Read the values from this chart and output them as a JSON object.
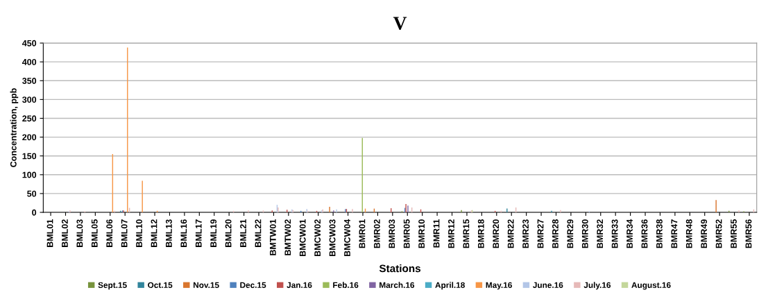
{
  "chart_data": {
    "type": "bar",
    "title": "V",
    "xlabel": "Stations",
    "ylabel": "Concentration, ppb",
    "categories": [
      "BML01",
      "BML02",
      "BML03",
      "BML05",
      "BML06",
      "BML07",
      "BML10",
      "BML12",
      "BML13",
      "BML16",
      "BML17",
      "BML19",
      "BML20",
      "BML21",
      "BML22",
      "BMTW01",
      "BMTW02",
      "BMCW01",
      "BMCW02",
      "BMCW03",
      "BMCW04",
      "BMR01",
      "BMR02",
      "BMR03",
      "BMR05",
      "BMR10",
      "BMR11",
      "BMR12",
      "BMR15",
      "BMR18",
      "BMR20",
      "BMR22",
      "BMR23",
      "BMR27",
      "BMR28",
      "BMR29",
      "BMR30",
      "BMR32",
      "BMR33",
      "BMR34",
      "BMR36",
      "BMR38",
      "BMR47",
      "BMR48",
      "BMR49",
      "BMR52",
      "BMR55",
      "BMR56"
    ],
    "series": [
      {
        "name": "Sept.15",
        "color": "#77933c",
        "values": [
          null,
          null,
          null,
          null,
          null,
          null,
          null,
          null,
          null,
          null,
          null,
          null,
          null,
          null,
          null,
          null,
          null,
          null,
          null,
          null,
          null,
          null,
          null,
          null,
          3,
          null,
          null,
          null,
          6,
          null,
          null,
          null,
          null,
          null,
          null,
          null,
          null,
          null,
          null,
          null,
          null,
          null,
          null,
          null,
          null,
          null,
          4,
          3
        ]
      },
      {
        "name": "Oct.15",
        "color": "#31859c",
        "values": [
          null,
          null,
          null,
          null,
          null,
          4,
          null,
          null,
          null,
          null,
          null,
          null,
          null,
          null,
          null,
          null,
          null,
          null,
          null,
          null,
          null,
          null,
          null,
          null,
          null,
          null,
          null,
          null,
          null,
          null,
          null,
          10,
          null,
          null,
          4,
          null,
          null,
          null,
          null,
          null,
          null,
          null,
          null,
          null,
          null,
          null,
          null,
          null
        ]
      },
      {
        "name": "Nov.15",
        "color": "#d9762e",
        "values": [
          null,
          null,
          null,
          null,
          null,
          null,
          null,
          null,
          null,
          null,
          null,
          null,
          null,
          null,
          null,
          null,
          null,
          null,
          null,
          15,
          null,
          null,
          10,
          null,
          null,
          null,
          null,
          null,
          null,
          null,
          null,
          null,
          null,
          null,
          null,
          null,
          null,
          null,
          null,
          null,
          null,
          null,
          null,
          null,
          null,
          33,
          null,
          null
        ]
      },
      {
        "name": "Dec.15",
        "color": "#4f81bd",
        "values": [
          null,
          null,
          null,
          null,
          null,
          5,
          null,
          null,
          null,
          null,
          null,
          null,
          null,
          null,
          null,
          null,
          null,
          4,
          null,
          null,
          9,
          null,
          null,
          null,
          12,
          null,
          null,
          null,
          null,
          null,
          null,
          null,
          null,
          null,
          null,
          null,
          null,
          null,
          null,
          null,
          null,
          null,
          null,
          null,
          null,
          null,
          null,
          null
        ]
      },
      {
        "name": "Jan.16",
        "color": "#c0504d",
        "values": [
          null,
          null,
          null,
          null,
          null,
          5,
          null,
          null,
          null,
          null,
          null,
          null,
          null,
          null,
          null,
          5,
          7,
          null,
          4,
          null,
          9,
          null,
          null,
          11,
          22,
          8,
          null,
          null,
          null,
          null,
          4,
          null,
          null,
          null,
          null,
          null,
          null,
          null,
          null,
          null,
          null,
          null,
          null,
          null,
          null,
          null,
          null,
          null
        ]
      },
      {
        "name": "Feb.16",
        "color": "#9bbb59",
        "values": [
          null,
          null,
          null,
          null,
          null,
          null,
          null,
          null,
          null,
          null,
          null,
          null,
          null,
          null,
          null,
          null,
          null,
          null,
          null,
          null,
          null,
          198,
          null,
          null,
          null,
          null,
          null,
          null,
          null,
          null,
          null,
          null,
          null,
          null,
          null,
          null,
          null,
          null,
          null,
          null,
          null,
          null,
          null,
          null,
          null,
          null,
          null,
          null
        ]
      },
      {
        "name": "March.16",
        "color": "#8064a2",
        "values": [
          null,
          null,
          null,
          null,
          null,
          null,
          null,
          null,
          null,
          null,
          null,
          null,
          null,
          null,
          null,
          null,
          null,
          null,
          null,
          5,
          null,
          null,
          null,
          null,
          18,
          null,
          null,
          null,
          null,
          null,
          null,
          null,
          null,
          null,
          null,
          null,
          null,
          null,
          null,
          null,
          null,
          null,
          null,
          null,
          null,
          null,
          null,
          null
        ]
      },
      {
        "name": "April.18",
        "color": "#4bacc6",
        "values": [
          null,
          null,
          null,
          null,
          null,
          null,
          null,
          null,
          null,
          null,
          null,
          null,
          null,
          null,
          null,
          null,
          null,
          null,
          null,
          null,
          null,
          null,
          null,
          null,
          null,
          null,
          null,
          null,
          null,
          null,
          null,
          null,
          null,
          null,
          null,
          null,
          null,
          null,
          null,
          null,
          null,
          null,
          null,
          null,
          null,
          null,
          null,
          null
        ]
      },
      {
        "name": "May.16",
        "color": "#f79646",
        "values": [
          null,
          null,
          null,
          null,
          155,
          438,
          84,
          4,
          null,
          null,
          null,
          null,
          null,
          null,
          null,
          null,
          null,
          null,
          null,
          null,
          null,
          10,
          null,
          null,
          null,
          null,
          null,
          null,
          null,
          null,
          null,
          null,
          null,
          null,
          null,
          null,
          null,
          null,
          null,
          null,
          null,
          null,
          null,
          null,
          null,
          null,
          null,
          null
        ]
      },
      {
        "name": "June.16",
        "color": "#b3c6e7",
        "values": [
          null,
          3,
          null,
          null,
          null,
          null,
          null,
          null,
          null,
          null,
          null,
          null,
          null,
          null,
          null,
          20,
          8,
          9,
          5,
          8,
          null,
          null,
          null,
          null,
          null,
          null,
          null,
          null,
          null,
          null,
          null,
          null,
          null,
          null,
          null,
          null,
          3,
          null,
          null,
          null,
          null,
          null,
          null,
          null,
          null,
          null,
          null,
          null
        ]
      },
      {
        "name": "July.16",
        "color": "#e6b9b8",
        "values": [
          null,
          5,
          3,
          null,
          4,
          12,
          null,
          null,
          null,
          null,
          null,
          null,
          4,
          5,
          5,
          13,
          6,
          4,
          8,
          null,
          9,
          null,
          null,
          null,
          13,
          null,
          null,
          null,
          5,
          null,
          4,
          13,
          null,
          null,
          6,
          null,
          null,
          null,
          null,
          null,
          null,
          null,
          null,
          null,
          null,
          null,
          5,
          8
        ]
      },
      {
        "name": "August.16",
        "color": "#c4d79b",
        "values": [
          null,
          null,
          null,
          null,
          null,
          null,
          null,
          null,
          null,
          null,
          null,
          null,
          null,
          null,
          null,
          null,
          null,
          null,
          null,
          null,
          null,
          null,
          null,
          null,
          null,
          null,
          null,
          null,
          6,
          null,
          null,
          null,
          null,
          null,
          null,
          null,
          null,
          null,
          null,
          null,
          null,
          null,
          null,
          null,
          null,
          null,
          null,
          null
        ]
      }
    ],
    "ylim": [
      0,
      450
    ],
    "yticks": [
      0,
      50,
      100,
      150,
      200,
      250,
      300,
      350,
      400,
      450
    ],
    "grid": "y",
    "legend": "bottom"
  }
}
